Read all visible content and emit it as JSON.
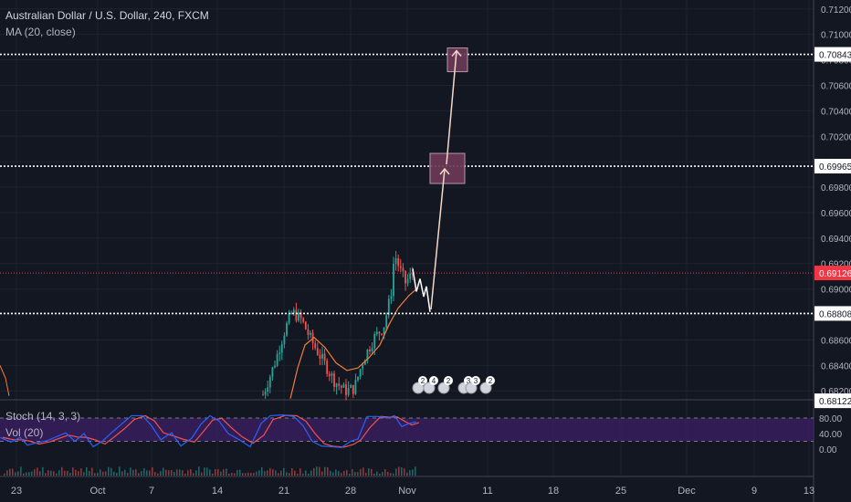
{
  "header": {
    "symbol_title": "Australian Dollar / U.S. Dollar, 240, FXCM",
    "ma_label": "MA (20, close)"
  },
  "lower_pane": {
    "stoch_label": "Stoch (14, 3, 3)",
    "vol_label": "Vol (20)"
  },
  "colors": {
    "background": "#131722",
    "grid": "#1e222d",
    "candle_up": "#26a69a",
    "candle_down": "#ef5350",
    "ma": "#f57c3a",
    "current_price": "#f23645",
    "level_line": "#ffffff",
    "target_box": "#6d3a57",
    "stoch_band": "#3d1f66",
    "stoch_k": "#2962ff",
    "stoch_d": "#ef5350"
  },
  "chart_data": {
    "type": "candlestick",
    "title": "Australian Dollar / U.S. Dollar, 240, FXCM",
    "price_axis": {
      "ticks": [
        "0.71200",
        "0.71000",
        "0.70800",
        "0.70600",
        "0.70400",
        "0.70200",
        "0.70000",
        "0.69800",
        "0.69600",
        "0.69400",
        "0.69200",
        "0.69000",
        "0.68800",
        "0.68600",
        "0.68400",
        "0.68200"
      ],
      "ylim": [
        0.6813,
        0.7127
      ]
    },
    "date_axis": {
      "ticks": [
        "23",
        "Oct",
        "7",
        "14",
        "21",
        "28",
        "Nov",
        "11",
        "18",
        "25",
        "Dec",
        "9",
        "13"
      ]
    },
    "price_labels": [
      {
        "name": "target-2",
        "value": 0.70843,
        "label": "0.70843"
      },
      {
        "name": "target-1",
        "value": 0.69965,
        "label": "0.69965"
      },
      {
        "name": "current",
        "value": 0.69126,
        "label": "0.69126"
      },
      {
        "name": "support",
        "value": 0.68808,
        "label": "0.68808"
      },
      {
        "name": "bottom",
        "value": 0.68122,
        "label": "0.68122"
      }
    ],
    "event_badges": [
      "2",
      "4",
      "2",
      "3",
      "3",
      "2"
    ],
    "stochastic": {
      "ticks": [
        "80.00",
        "40.00",
        "0.00"
      ],
      "upper_band": 80,
      "lower_band": 20
    },
    "legend_placement": "top-left",
    "grid": true
  }
}
